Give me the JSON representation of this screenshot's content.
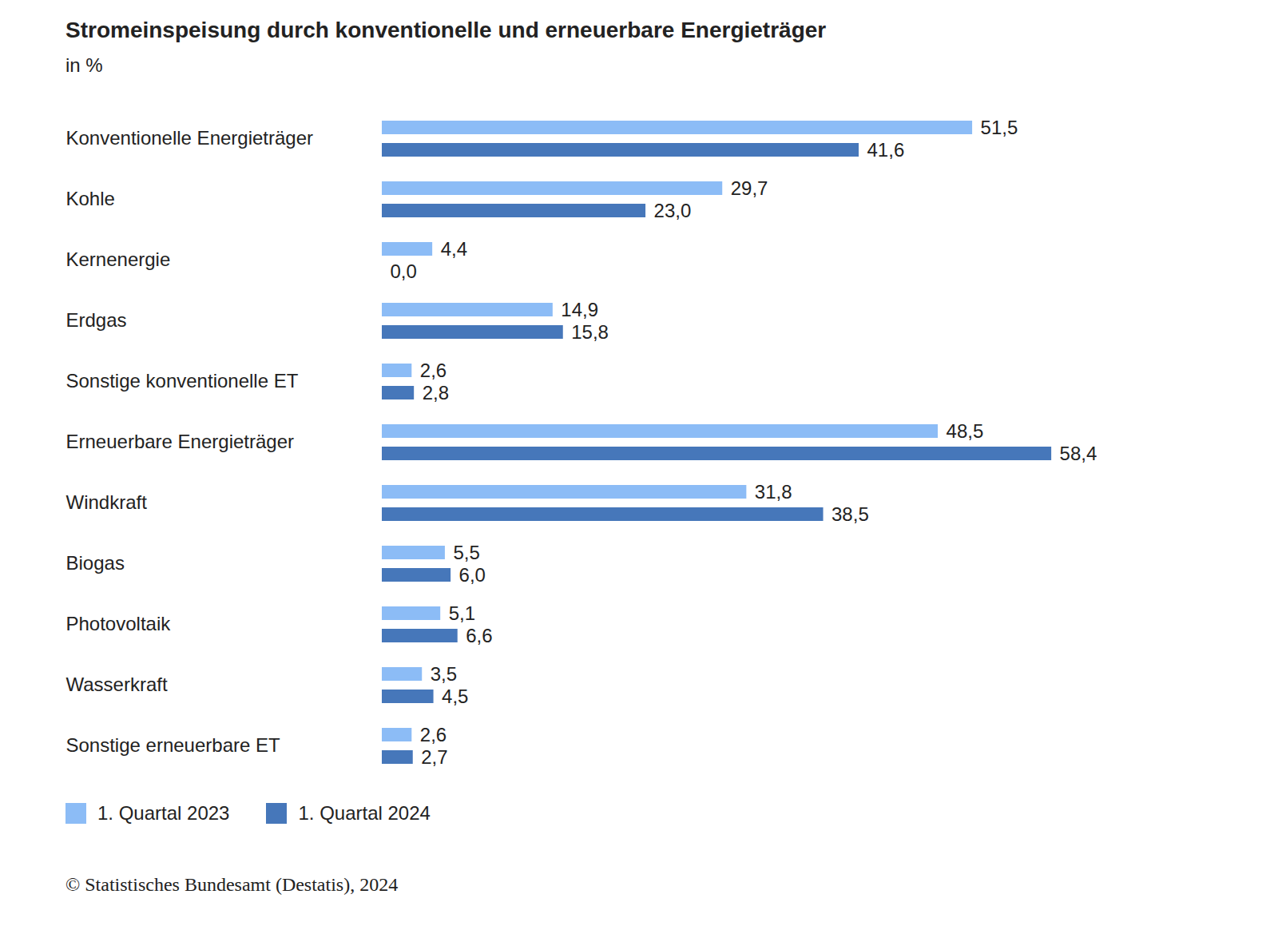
{
  "chart_data": {
    "type": "bar",
    "orientation": "horizontal",
    "title": "Stromeinspeisung durch konventionelle und erneuerbare Energieträger",
    "subtitle": "in %",
    "source": "© Statistisches Bundesamt (Destatis), 2024",
    "categories": [
      "Konventionelle Energieträger",
      "Kohle",
      "Kernenergie",
      "Erdgas",
      "Sonstige konventionelle ET",
      "Erneuerbare Energieträger",
      "Windkraft",
      "Biogas",
      "Photovoltaik",
      "Wasserkraft",
      "Sonstige erneuerbare ET"
    ],
    "series": [
      {
        "name": "1. Quartal 2023",
        "color": "#8cbcf6",
        "values": [
          51.5,
          29.7,
          4.4,
          14.9,
          2.6,
          48.5,
          31.8,
          5.5,
          5.1,
          3.5,
          2.6
        ],
        "value_labels": [
          "51,5",
          "29,7",
          "4,4",
          "14,9",
          "2,6",
          "48,5",
          "31,8",
          "5,5",
          "5,1",
          "3,5",
          "2,6"
        ]
      },
      {
        "name": "1. Quartal 2024",
        "color": "#4677ba",
        "values": [
          41.6,
          23.0,
          0.0,
          15.8,
          2.8,
          58.4,
          38.5,
          6.0,
          6.6,
          4.5,
          2.7
        ],
        "value_labels": [
          "41,6",
          "23,0",
          "0,0",
          "15,8",
          "2,8",
          "58,4",
          "38,5",
          "6,0",
          "6,6",
          "4,5",
          "2,7"
        ]
      }
    ],
    "xlim": [
      0,
      74
    ],
    "data_labels": true,
    "tick_labels": "y",
    "grid": false,
    "legend": "bottom-left"
  }
}
